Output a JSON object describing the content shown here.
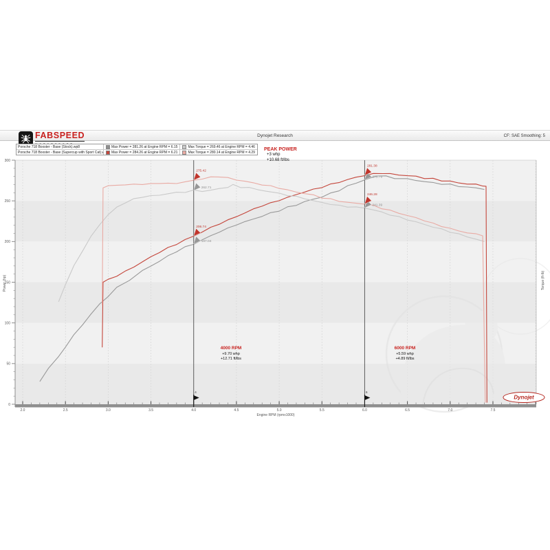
{
  "header": {
    "title": "Dynojet Research",
    "correction": "CF: SAE Smoothing: 5"
  },
  "logo": {
    "brand": "FABSPEED",
    "sub": "MOTORSPORT"
  },
  "legend": {
    "runs": [
      {
        "name": "Porsche 718 Boxster - Base (Stock).wp8",
        "power_label": "Max Power = 281.26 at Engine RPM = 6.15",
        "torque_label": "Max Torque = 269.46 at Engine RPM = 4.46",
        "power_color": "#8f8f8f",
        "torque_color": "#c9c9c9"
      },
      {
        "name": "Porsche 718 Boxster - Base (Supercup with Sport Cat).wp8",
        "power_label": "Max Power = 284.26 at Engine RPM = 6.21",
        "torque_label": "Max Torque = 280.14 at Engine RPM = 4.29",
        "power_color": "#c4453a",
        "torque_color": "#e9aaa3"
      }
    ]
  },
  "annotations": {
    "peak": {
      "title": "PEAK POWER",
      "l1": "+3 whp",
      "l2": "+10.68 ft/lbs"
    },
    "rpm4000": {
      "title": "4000 RPM",
      "l1": "+9.70 whp",
      "l2": "+12.71 ft/lbs"
    },
    "rpm6000": {
      "title": "6000 RPM",
      "l1": "+5.59 whp",
      "l2": "+4.89 ft/lbs"
    }
  },
  "axis": {
    "x_title": "Engine RPM (rpmx1000)",
    "y_left_title": "Power (hp)",
    "y_right_title": "Torque (ft-lb)"
  },
  "footer_logo": "Dynojet",
  "chart_data": {
    "type": "line",
    "title": "Dynojet Research",
    "xlabel": "Engine RPM (rpmx1000)",
    "ylabel": "Power (hp)",
    "ylabel_right": "Torque (ft-lb)",
    "xlim": [
      1.91,
      8.0
    ],
    "ylim": [
      0,
      300
    ],
    "x_ticks": [
      "2.0",
      "2.5",
      "3.0",
      "3.5",
      "4.0",
      "4.5",
      "5.0",
      "5.5",
      "6.0",
      "6.5",
      "7.0",
      "7.5"
    ],
    "y_ticks": [
      "0",
      "50",
      "100",
      "150",
      "200",
      "250",
      "300"
    ],
    "grid": "vertical dashed gridlines every 0.5; horizontal alternating 50-unit bands",
    "legend_position": "top-left",
    "cursors": [
      {
        "rpm": 4.0,
        "label": "4"
      },
      {
        "rpm": 6.0,
        "label": "6"
      }
    ],
    "series": [
      {
        "id": "power-stock",
        "name": "Power - Base (Stock)",
        "unit": "hp",
        "color": "#999999",
        "peak": {
          "value": 281.26,
          "rpm": 6.15
        },
        "points": [
          [
            2.2,
            28
          ],
          [
            2.3,
            44
          ],
          [
            2.42,
            58
          ],
          [
            2.5,
            71
          ],
          [
            2.6,
            85
          ],
          [
            2.7,
            98
          ],
          [
            2.8,
            111
          ],
          [
            2.9,
            123
          ],
          [
            3.0,
            133
          ],
          [
            3.1,
            143
          ],
          [
            3.25,
            153
          ],
          [
            3.4,
            164
          ],
          [
            3.5,
            170
          ],
          [
            3.6,
            176
          ],
          [
            3.7,
            182
          ],
          [
            3.8,
            188
          ],
          [
            3.9,
            193
          ],
          [
            4.0,
            197.04
          ],
          [
            4.1,
            202
          ],
          [
            4.2,
            207
          ],
          [
            4.3,
            212
          ],
          [
            4.4,
            216
          ],
          [
            4.5,
            221
          ],
          [
            4.6,
            224
          ],
          [
            4.7,
            228
          ],
          [
            4.8,
            231
          ],
          [
            4.9,
            235
          ],
          [
            5.0,
            238
          ],
          [
            5.1,
            242
          ],
          [
            5.2,
            245
          ],
          [
            5.3,
            249
          ],
          [
            5.4,
            252
          ],
          [
            5.5,
            255
          ],
          [
            5.6,
            259
          ],
          [
            5.7,
            263
          ],
          [
            5.8,
            268
          ],
          [
            5.9,
            272
          ],
          [
            6.0,
            275.79
          ],
          [
            6.1,
            279
          ],
          [
            6.15,
            281.26
          ],
          [
            6.25,
            280
          ],
          [
            6.35,
            278
          ],
          [
            6.5,
            277
          ],
          [
            6.6,
            275
          ],
          [
            6.7,
            274
          ],
          [
            6.8,
            272
          ],
          [
            6.9,
            271
          ],
          [
            7.0,
            270
          ],
          [
            7.1,
            268
          ],
          [
            7.2,
            267
          ],
          [
            7.3,
            266
          ],
          [
            7.4,
            264
          ]
        ]
      },
      {
        "id": "power-supercup",
        "name": "Power - Base (Supercup with Sport Cat)",
        "unit": "hp",
        "color": "#c4453a",
        "peak": {
          "value": 284.26,
          "rpm": 6.21
        },
        "points": [
          [
            2.93,
            70
          ],
          [
            2.94,
            150
          ],
          [
            3.0,
            153
          ],
          [
            3.1,
            158
          ],
          [
            3.2,
            163
          ],
          [
            3.3,
            169
          ],
          [
            3.4,
            175
          ],
          [
            3.5,
            181
          ],
          [
            3.6,
            187
          ],
          [
            3.7,
            192
          ],
          [
            3.8,
            197
          ],
          [
            3.9,
            202
          ],
          [
            4.0,
            206.74
          ],
          [
            4.1,
            212
          ],
          [
            4.2,
            217
          ],
          [
            4.3,
            222
          ],
          [
            4.4,
            226
          ],
          [
            4.5,
            231
          ],
          [
            4.6,
            235
          ],
          [
            4.7,
            240
          ],
          [
            4.8,
            244
          ],
          [
            4.9,
            247
          ],
          [
            5.0,
            251
          ],
          [
            5.1,
            254
          ],
          [
            5.2,
            258
          ],
          [
            5.3,
            261
          ],
          [
            5.4,
            264
          ],
          [
            5.5,
            267
          ],
          [
            5.6,
            270
          ],
          [
            5.7,
            273
          ],
          [
            5.8,
            276
          ],
          [
            5.9,
            279
          ],
          [
            6.0,
            281.38
          ],
          [
            6.1,
            283
          ],
          [
            6.21,
            284.26
          ],
          [
            6.3,
            283
          ],
          [
            6.4,
            282
          ],
          [
            6.5,
            281
          ],
          [
            6.6,
            280
          ],
          [
            6.7,
            278
          ],
          [
            6.8,
            277
          ],
          [
            6.9,
            275
          ],
          [
            7.0,
            274
          ],
          [
            7.1,
            272
          ],
          [
            7.2,
            271
          ],
          [
            7.3,
            270
          ],
          [
            7.38,
            269
          ],
          [
            7.42,
            268
          ],
          [
            7.43,
            2
          ]
        ]
      },
      {
        "id": "torque-stock",
        "name": "Torque - Base (Stock)",
        "unit": "ft-lb",
        "color": "#c9c9c9",
        "peak": {
          "value": 269.46,
          "rpm": 4.46
        },
        "points": [
          [
            2.42,
            126
          ],
          [
            2.5,
            147
          ],
          [
            2.6,
            170
          ],
          [
            2.7,
            189
          ],
          [
            2.8,
            206
          ],
          [
            2.9,
            221
          ],
          [
            3.0,
            233
          ],
          [
            3.1,
            242
          ],
          [
            3.2,
            248
          ],
          [
            3.3,
            252
          ],
          [
            3.4,
            255
          ],
          [
            3.5,
            256
          ],
          [
            3.6,
            257
          ],
          [
            3.7,
            259
          ],
          [
            3.8,
            260
          ],
          [
            3.9,
            261
          ],
          [
            4.0,
            262.71
          ],
          [
            4.1,
            262
          ],
          [
            4.2,
            263
          ],
          [
            4.3,
            265
          ],
          [
            4.4,
            267
          ],
          [
            4.46,
            269.46
          ],
          [
            4.55,
            267
          ],
          [
            4.65,
            266
          ],
          [
            4.75,
            264
          ],
          [
            4.85,
            262
          ],
          [
            5.0,
            259
          ],
          [
            5.1,
            257
          ],
          [
            5.2,
            255
          ],
          [
            5.3,
            253
          ],
          [
            5.4,
            250
          ],
          [
            5.5,
            248
          ],
          [
            5.6,
            246
          ],
          [
            5.7,
            244
          ],
          [
            5.8,
            243
          ],
          [
            5.9,
            242
          ],
          [
            6.0,
            241.39
          ],
          [
            6.1,
            239
          ],
          [
            6.2,
            236
          ],
          [
            6.3,
            233
          ],
          [
            6.4,
            230
          ],
          [
            6.5,
            227
          ],
          [
            6.6,
            224
          ],
          [
            6.7,
            221
          ],
          [
            6.8,
            218
          ],
          [
            6.9,
            215
          ],
          [
            7.0,
            212
          ],
          [
            7.1,
            209
          ],
          [
            7.2,
            206
          ],
          [
            7.3,
            203
          ],
          [
            7.4,
            200
          ]
        ]
      },
      {
        "id": "torque-supercup",
        "name": "Torque - Base (Supercup with Sport Cat)",
        "unit": "ft-lb",
        "color": "#e9aaa3",
        "peak": {
          "value": 280.14,
          "rpm": 4.29
        },
        "points": [
          [
            2.93,
            122
          ],
          [
            2.94,
            266
          ],
          [
            3.0,
            268
          ],
          [
            3.1,
            270
          ],
          [
            3.2,
            269
          ],
          [
            3.3,
            271
          ],
          [
            3.4,
            270
          ],
          [
            3.5,
            271
          ],
          [
            3.6,
            272
          ],
          [
            3.7,
            271
          ],
          [
            3.8,
            272
          ],
          [
            3.9,
            273
          ],
          [
            4.0,
            275.42
          ],
          [
            4.1,
            277
          ],
          [
            4.2,
            279
          ],
          [
            4.29,
            280.14
          ],
          [
            4.4,
            278
          ],
          [
            4.5,
            276
          ],
          [
            4.6,
            274
          ],
          [
            4.7,
            272
          ],
          [
            4.8,
            270
          ],
          [
            4.9,
            268
          ],
          [
            5.0,
            266
          ],
          [
            5.1,
            263
          ],
          [
            5.2,
            261
          ],
          [
            5.3,
            259
          ],
          [
            5.4,
            257
          ],
          [
            5.5,
            254
          ],
          [
            5.6,
            252
          ],
          [
            5.7,
            250
          ],
          [
            5.8,
            248
          ],
          [
            5.9,
            247
          ],
          [
            6.0,
            246.28
          ],
          [
            6.1,
            244
          ],
          [
            6.2,
            241
          ],
          [
            6.3,
            238
          ],
          [
            6.4,
            235
          ],
          [
            6.5,
            232
          ],
          [
            6.6,
            229
          ],
          [
            6.7,
            226
          ],
          [
            6.8,
            222
          ],
          [
            6.9,
            219
          ],
          [
            7.0,
            216
          ],
          [
            7.1,
            213
          ],
          [
            7.2,
            211
          ],
          [
            7.3,
            209
          ],
          [
            7.38,
            207
          ],
          [
            7.41,
            2
          ]
        ]
      }
    ],
    "flags": [
      {
        "rpm": 4.0,
        "value": 262.71,
        "label": "262.71",
        "series": "gray"
      },
      {
        "rpm": 4.0,
        "value": 197.04,
        "label": "197.04",
        "series": "gray"
      },
      {
        "rpm": 6.0,
        "value": 275.79,
        "label": "275.79",
        "series": "gray"
      },
      {
        "rpm": 6.0,
        "value": 241.39,
        "label": "241.39",
        "series": "gray"
      },
      {
        "rpm": 4.0,
        "value": 275.42,
        "label": "275.42",
        "series": "red"
      },
      {
        "rpm": 4.0,
        "value": 206.74,
        "label": "206.74",
        "series": "red"
      },
      {
        "rpm": 6.0,
        "value": 281.38,
        "label": "281.38",
        "series": "red"
      },
      {
        "rpm": 6.0,
        "value": 246.28,
        "label": "246.28",
        "series": "red"
      }
    ]
  }
}
